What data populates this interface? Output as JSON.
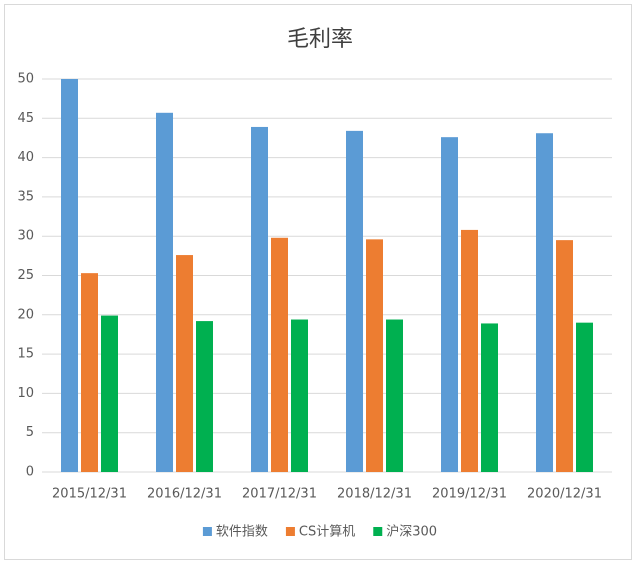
{
  "chart_data": {
    "type": "bar",
    "title": "毛利率",
    "categories": [
      "2015/12/31",
      "2016/12/31",
      "2017/12/31",
      "2018/12/31",
      "2019/12/31",
      "2020/12/31"
    ],
    "series": [
      {
        "name": "软件指数",
        "color": "#5b9bd5",
        "values": [
          50,
          45.7,
          43.9,
          43.4,
          42.6,
          43.1
        ]
      },
      {
        "name": "CS计算机",
        "color": "#ed7d31",
        "values": [
          25.3,
          27.6,
          29.8,
          29.6,
          30.8,
          29.5
        ]
      },
      {
        "name": "沪深300",
        "color": "#00b050",
        "values": [
          19.9,
          19.2,
          19.4,
          19.4,
          18.9,
          19.0
        ]
      }
    ],
    "ylim": [
      0,
      50
    ],
    "yticks": [
      0,
      5,
      10,
      15,
      20,
      25,
      30,
      35,
      40,
      45,
      50
    ],
    "grid": true,
    "legend": "bottom"
  }
}
